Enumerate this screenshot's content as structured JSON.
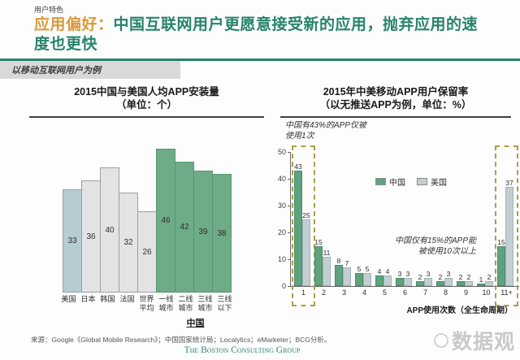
{
  "page": {
    "eyebrow": "用户特色",
    "title_highlight": "应用偏好：",
    "title_rest": "中国互联网用户更愿意接受新的应用，抛弃应用的速度也更快",
    "subtitle": "以移动互联网用户为例"
  },
  "colors": {
    "accent_green": "#27836e",
    "accent_orange": "#d99a3c",
    "bar_green": "#6eac87",
    "bar_gray": "#e3e3e3",
    "bar_blue_gray": "#b7cbd3",
    "retention_china": "#5ea37e",
    "retention_usa": "#c3ced2",
    "dashed_highlight": "#ad9c4b"
  },
  "chart_data": [
    {
      "type": "bar",
      "title": "2015中国与美国人均APP安装量",
      "subtitle": "（单位：个）",
      "categories": [
        "美国",
        "日本",
        "韩国",
        "法国",
        "世界平均",
        "一线城市",
        "二线城市",
        "三线城市",
        "三线以下"
      ],
      "values": [
        33,
        36,
        40,
        32,
        26,
        46,
        42,
        39,
        38
      ],
      "bar_styles": [
        "blue",
        "gray",
        "gray",
        "gray",
        "gray",
        "green",
        "green",
        "green",
        "green"
      ],
      "china_group_label": "中国",
      "ylim": [
        0,
        50
      ],
      "grid": false
    },
    {
      "type": "grouped-bar",
      "title": "2015年中美移动APP用户保留率",
      "subtitle": "（以无推送APP为例，单位：%）",
      "categories": [
        "1",
        "2",
        "3",
        "4",
        "5",
        "6",
        "7",
        "8",
        "9",
        "10",
        "11+"
      ],
      "series": [
        {
          "name": "中国",
          "values": [
            43,
            15,
            8,
            5,
            4,
            3,
            2,
            2,
            2,
            1,
            15
          ]
        },
        {
          "name": "美国",
          "values": [
            25,
            11,
            7,
            5,
            4,
            3,
            3,
            3,
            2,
            2,
            37
          ]
        }
      ],
      "y_ticks": [
        0,
        10,
        20,
        30,
        40,
        50
      ],
      "ylim": [
        0,
        50
      ],
      "xlabel": "APP使用次数（全生命周期）",
      "legend_position": "inside-top",
      "highlighted_categories": [
        "1",
        "11+"
      ],
      "annotation1_line1": "中国有43%的APP仅被",
      "annotation1_line2": "使用1次",
      "annotation2_line1": "中国仅有15%的APP能",
      "annotation2_line2": "被使用10次以上",
      "grid": false
    }
  ],
  "footer": {
    "source": "来源：Google《Global Mobile Research》；中国国家统计局；Localytics；eMarketer；BCG分析。",
    "bcg": "The Boston Consulting Group",
    "watermark": "数据观"
  }
}
